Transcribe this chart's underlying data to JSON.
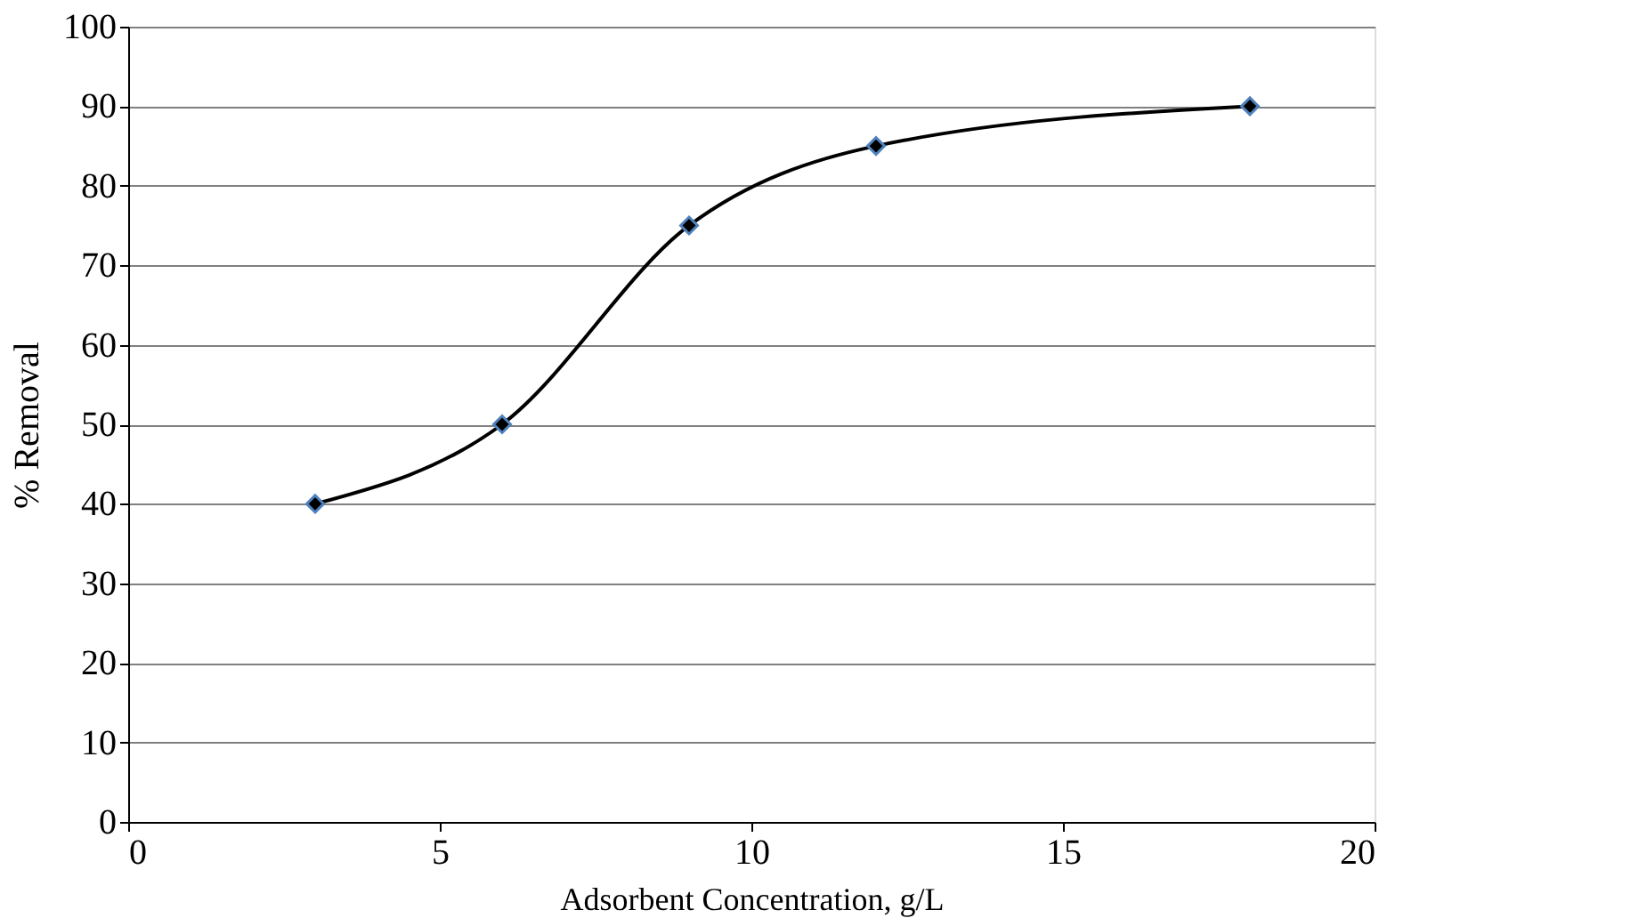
{
  "chart_data": {
    "type": "line",
    "xlabel": "Adsorbent Concentration, g/L",
    "ylabel": "% Removal",
    "series": [
      {
        "color": "#000000",
        "x": [
          3,
          6,
          9,
          12,
          18
        ],
        "values": [
          40,
          50,
          75,
          85,
          90
        ]
      }
    ],
    "xlim": [
      0,
      20
    ],
    "xticks": [
      0,
      5,
      10,
      15,
      20
    ],
    "ylim": [
      0,
      100
    ],
    "yticks": [
      0,
      10,
      20,
      30,
      40,
      50,
      60,
      70,
      80,
      90,
      100
    ],
    "grid": "y",
    "marker": "diamond",
    "line_style": "solid"
  }
}
